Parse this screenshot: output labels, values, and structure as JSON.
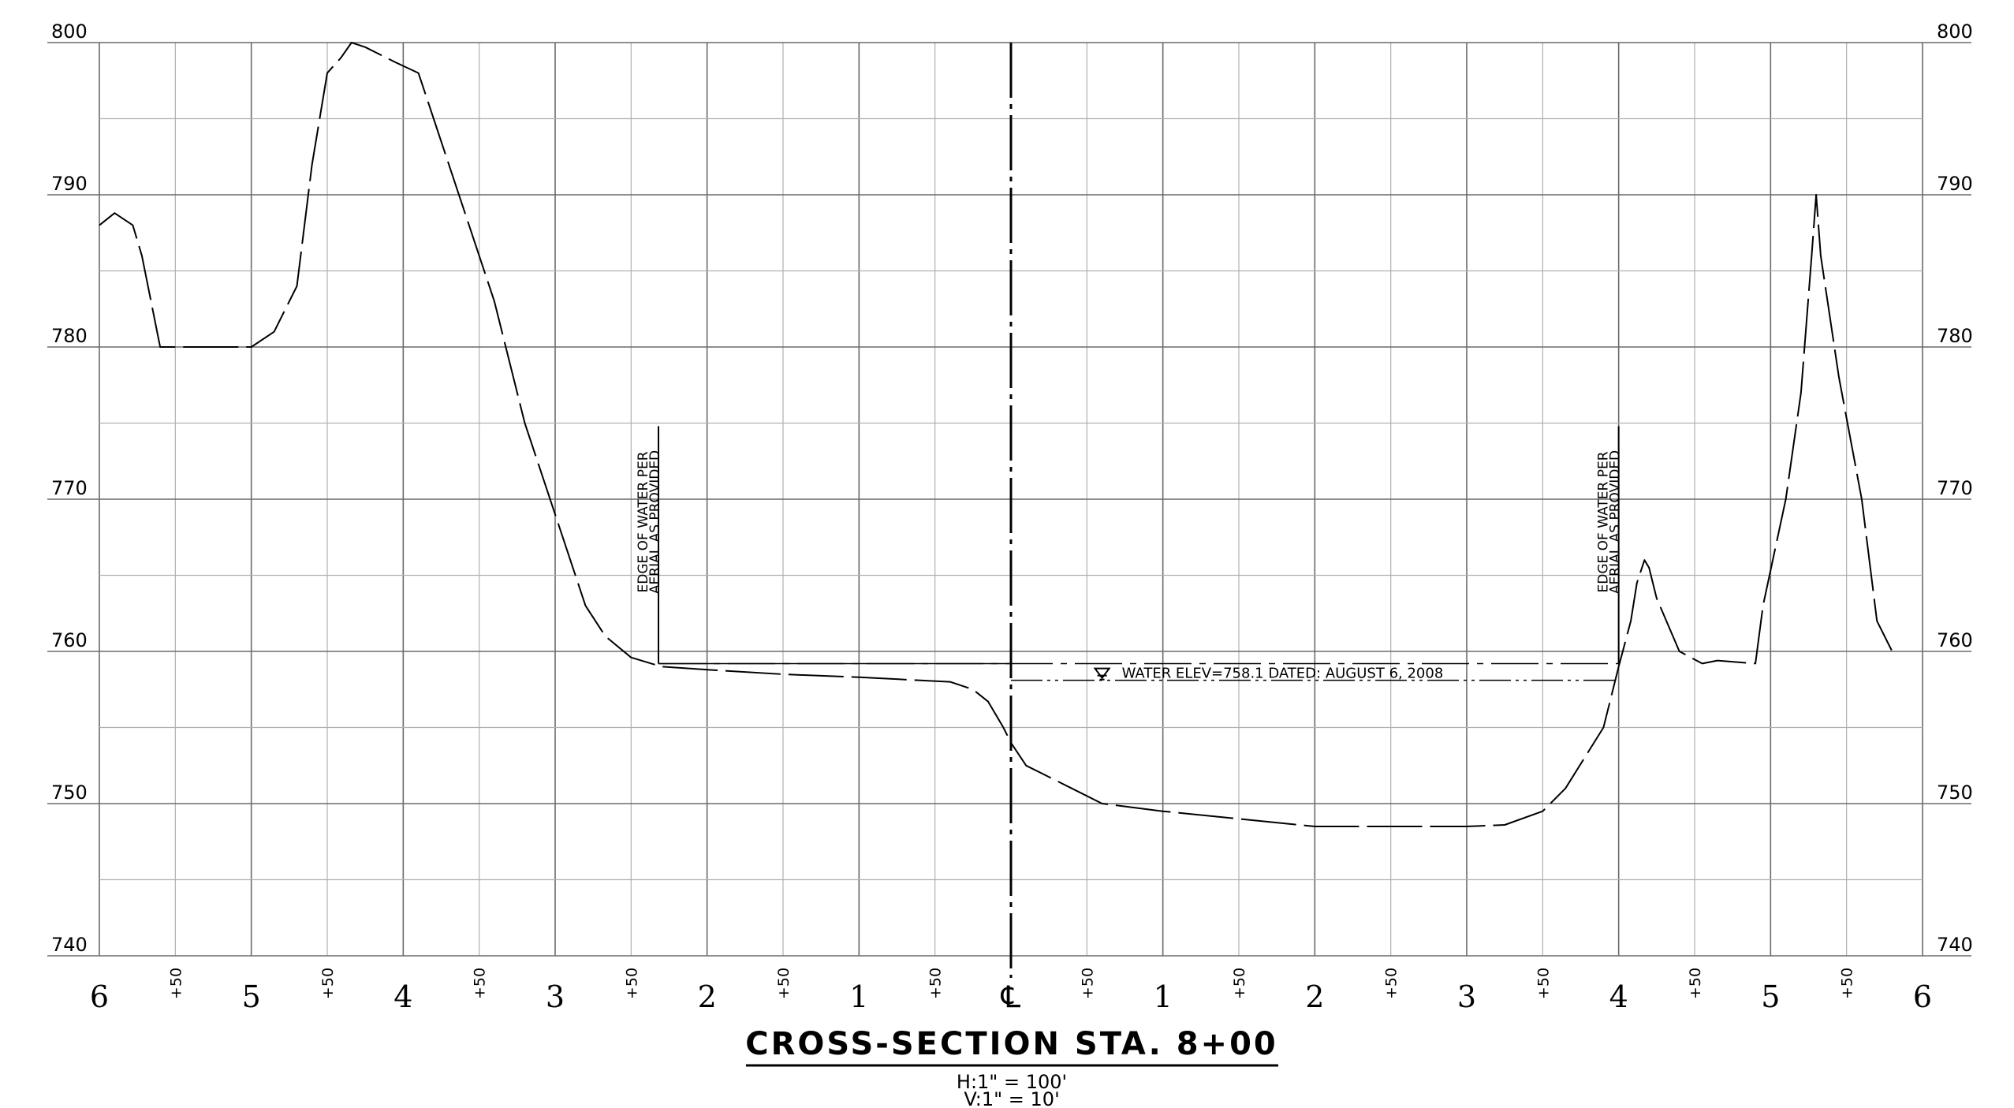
{
  "chart_data": {
    "type": "line",
    "title": "CROSS-SECTION STA. 8+00",
    "scale": {
      "horizontal": "H:1\" = 100'",
      "vertical": "V:1\" = 10'"
    },
    "xlim": [
      -600,
      600
    ],
    "ylim": [
      740,
      800
    ],
    "grid": true,
    "y_ticks": [
      740,
      750,
      760,
      770,
      780,
      790,
      800
    ],
    "y_tick_labels": [
      "740",
      "750",
      "760",
      "770",
      "780",
      "790",
      "800"
    ],
    "x_ticks": [
      {
        "x": -600,
        "label": "6"
      },
      {
        "x": -550,
        "label": "+50"
      },
      {
        "x": -500,
        "label": "5"
      },
      {
        "x": -450,
        "label": "+50"
      },
      {
        "x": -400,
        "label": "4"
      },
      {
        "x": -350,
        "label": "+50"
      },
      {
        "x": -300,
        "label": "3"
      },
      {
        "x": -250,
        "label": "+50"
      },
      {
        "x": -200,
        "label": "2"
      },
      {
        "x": -150,
        "label": "+50"
      },
      {
        "x": -100,
        "label": "1"
      },
      {
        "x": -50,
        "label": "+50"
      },
      {
        "x": 0,
        "label": "℄"
      },
      {
        "x": 50,
        "label": "+50"
      },
      {
        "x": 100,
        "label": "1"
      },
      {
        "x": 150,
        "label": "+50"
      },
      {
        "x": 200,
        "label": "2"
      },
      {
        "x": 250,
        "label": "+50"
      },
      {
        "x": 300,
        "label": "3"
      },
      {
        "x": 350,
        "label": "+50"
      },
      {
        "x": 400,
        "label": "4"
      },
      {
        "x": 450,
        "label": "+50"
      },
      {
        "x": 500,
        "label": "5"
      },
      {
        "x": 550,
        "label": "+50"
      },
      {
        "x": 600,
        "label": "6"
      }
    ],
    "series": [
      {
        "values": [
          [
            -600,
            788
          ],
          [
            -590,
            788.8
          ],
          [
            -578,
            788
          ],
          [
            -572,
            786
          ],
          [
            -560,
            780
          ],
          [
            -500,
            780
          ],
          [
            -485,
            781
          ],
          [
            -480,
            782
          ],
          [
            -470,
            784
          ],
          [
            -460,
            792
          ],
          [
            -450,
            798
          ],
          [
            -441,
            799
          ],
          [
            -434,
            800
          ],
          [
            -425,
            799.7
          ],
          [
            -405,
            798.7
          ],
          [
            -390,
            798
          ],
          [
            -380,
            795
          ],
          [
            -360,
            789
          ],
          [
            -340,
            783
          ],
          [
            -320,
            775
          ],
          [
            -300,
            769
          ],
          [
            -280,
            763
          ],
          [
            -267,
            761
          ],
          [
            -250,
            759.6
          ],
          [
            -230,
            759
          ],
          [
            -200,
            758.8
          ],
          [
            -150,
            758.5
          ],
          [
            -100,
            758.3
          ],
          [
            -40,
            758
          ],
          [
            -25,
            757.5
          ],
          [
            -15,
            756.7
          ],
          [
            -5,
            755
          ],
          [
            0,
            754
          ],
          [
            10,
            752.5
          ],
          [
            20,
            752
          ],
          [
            40,
            751
          ],
          [
            60,
            750
          ],
          [
            100,
            749.5
          ],
          [
            150,
            749
          ],
          [
            200,
            748.5
          ],
          [
            250,
            748.5
          ],
          [
            300,
            748.5
          ],
          [
            325,
            748.6
          ],
          [
            350,
            749.5
          ],
          [
            365,
            751
          ],
          [
            390,
            755
          ],
          [
            400,
            759
          ],
          [
            408,
            762
          ],
          [
            412,
            764.5
          ],
          [
            417,
            766
          ],
          [
            420,
            765.5
          ],
          [
            425,
            763.5
          ],
          [
            440,
            760
          ],
          [
            455,
            759.2
          ],
          [
            465,
            759.4
          ],
          [
            490,
            759.2
          ],
          [
            495,
            763
          ],
          [
            510,
            770
          ],
          [
            520,
            777
          ],
          [
            527,
            786
          ],
          [
            530,
            790
          ],
          [
            533,
            786
          ],
          [
            545,
            778
          ],
          [
            560,
            770
          ],
          [
            570,
            762
          ],
          [
            580,
            760
          ]
        ]
      }
    ],
    "water_surface": {
      "elevation": 758.1,
      "label": "WATER ELEV=758.1 DATED: AUGUST 6, 2008",
      "x_range": [
        -232,
        400
      ]
    },
    "annotations": [
      {
        "x": -232,
        "text": [
          "EDGE OF WATER PER",
          "AERIAL AS PROVIDED"
        ]
      },
      {
        "x": 400,
        "text": [
          "EDGE OF WATER PER",
          "AERIAL AS PROVIDED"
        ]
      }
    ]
  }
}
